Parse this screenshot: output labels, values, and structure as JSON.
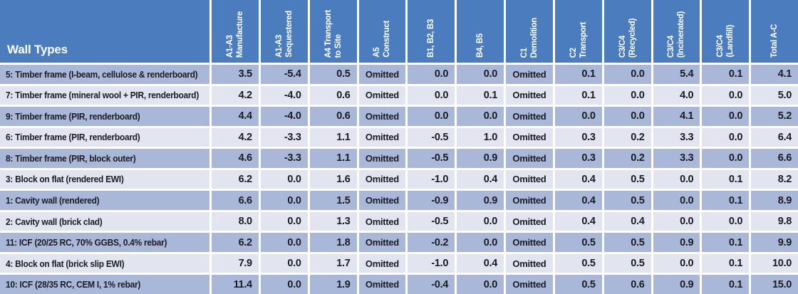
{
  "chart_data": {
    "type": "table",
    "corner_label": "Wall Types",
    "columns": [
      "A1-A3\nManufacture",
      "A1-A3\nSequestered",
      "A4 Transport\nto Site",
      "A5\nConstruct",
      "B1, B2, B3",
      "B4, B5",
      "C1\nDemolition",
      "C2\nTransport",
      "C3/C4\n(Recycled)",
      "C3/C4\n(Incinerated)",
      "C3/C4\n(Landfill)",
      "Total A-C"
    ],
    "rows": [
      {
        "label": "5: Timber frame (I-beam, cellulose & renderboard)",
        "values": [
          "3.5",
          "-5.4",
          "0.5",
          "Omitted",
          "0.0",
          "0.0",
          "Omitted",
          "0.1",
          "0.0",
          "5.4",
          "0.1",
          "4.1"
        ]
      },
      {
        "label": "7: Timber frame (mineral wool + PIR, renderboard)",
        "values": [
          "4.2",
          "-4.0",
          "0.6",
          "Omitted",
          "0.0",
          "0.1",
          "Omitted",
          "0.1",
          "0.0",
          "4.0",
          "0.0",
          "5.0"
        ]
      },
      {
        "label": "9: Timber frame (PIR, renderboard)",
        "values": [
          "4.4",
          "-4.0",
          "0.6",
          "Omitted",
          "0.0",
          "0.0",
          "Omitted",
          "0.0",
          "0.0",
          "4.1",
          "0.0",
          "5.2"
        ]
      },
      {
        "label": "6: Timber frame (PIR, renderboard)",
        "values": [
          "4.2",
          "-3.3",
          "1.1",
          "Omitted",
          "-0.5",
          "1.0",
          "Omitted",
          "0.3",
          "0.2",
          "3.3",
          "0.0",
          "6.4"
        ]
      },
      {
        "label": "8: Timber frame (PIR, block outer)",
        "values": [
          "4.6",
          "-3.3",
          "1.1",
          "Omitted",
          "-0.5",
          "0.9",
          "Omitted",
          "0.3",
          "0.2",
          "3.3",
          "0.0",
          "6.6"
        ]
      },
      {
        "label": "3: Block on flat (rendered EWI)",
        "values": [
          "6.2",
          "0.0",
          "1.6",
          "Omitted",
          "-1.0",
          "0.4",
          "Omitted",
          "0.4",
          "0.5",
          "0.0",
          "0.1",
          "8.2"
        ]
      },
      {
        "label": "1: Cavity wall (rendered)",
        "values": [
          "6.6",
          "0.0",
          "1.5",
          "Omitted",
          "-0.9",
          "0.9",
          "Omitted",
          "0.4",
          "0.5",
          "0.0",
          "0.1",
          "8.9"
        ]
      },
      {
        "label": "2: Cavity wall (brick clad)",
        "values": [
          "8.0",
          "0.0",
          "1.3",
          "Omitted",
          "-0.5",
          "0.0",
          "Omitted",
          "0.4",
          "0.4",
          "0.0",
          "0.0",
          "9.8"
        ]
      },
      {
        "label": "11: ICF (20/25 RC, 70% GGBS, 0.4% rebar)",
        "values": [
          "6.2",
          "0.0",
          "1.8",
          "Omitted",
          "-0.2",
          "0.0",
          "Omitted",
          "0.5",
          "0.5",
          "0.9",
          "0.1",
          "9.9"
        ]
      },
      {
        "label": "4: Block on flat (brick slip EWI)",
        "values": [
          "7.9",
          "0.0",
          "1.7",
          "Omitted",
          "-1.0",
          "0.4",
          "Omitted",
          "0.5",
          "0.5",
          "0.0",
          "0.1",
          "10.0"
        ]
      },
      {
        "label": "10: ICF (28/35 RC, CEM I, 1% rebar)",
        "values": [
          "11.4",
          "0.0",
          "1.9",
          "Omitted",
          "-0.4",
          "0.0",
          "Omitted",
          "0.5",
          "0.6",
          "0.9",
          "0.1",
          "15.0"
        ]
      }
    ],
    "colors": {
      "header_bg": "#4a7cbe",
      "header_text": "#ffffff",
      "row_dark": "#a9b7d9",
      "row_light": "#e2e5f0",
      "divider": "#ffffff",
      "text_dark": "#1b1c22"
    },
    "layout_hints": {
      "header_text_rotation": "vertical, reads bottom-to-top",
      "row_shading": "alternating starting dark",
      "omitted_columns": [
        "A5 Construct",
        "C1 Demolition"
      ]
    }
  }
}
